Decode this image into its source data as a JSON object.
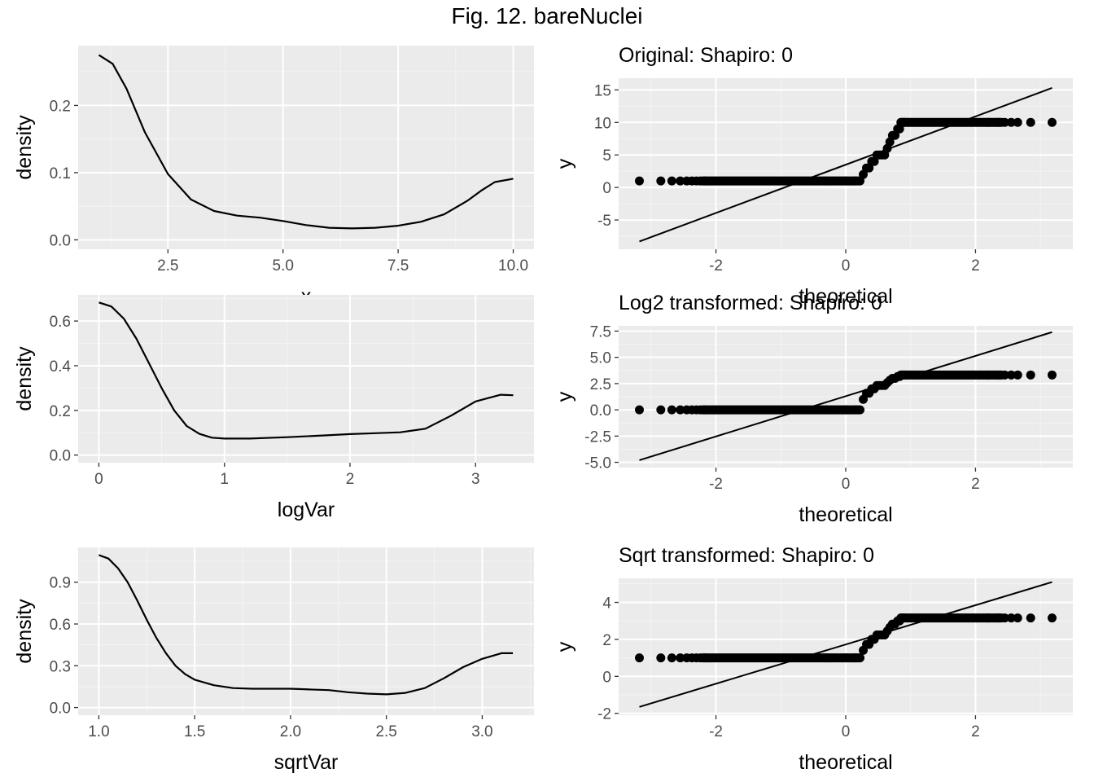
{
  "figure": {
    "title": "Fig. 12. bareNuclei"
  },
  "colors": {
    "panel_bg": "#ebebeb",
    "grid_major": "#ffffff",
    "grid_minor": "#f4f4f4",
    "line": "#000000",
    "tick_text": "#4d4d4d",
    "axis_title": "#000000"
  },
  "chart_data": [
    {
      "type": "line",
      "title": "",
      "xlabel": "x",
      "ylabel": "density",
      "xlim": [
        0.55,
        10.45
      ],
      "ylim": [
        -0.014,
        0.289
      ],
      "xticks": [
        2.5,
        5.0,
        7.5,
        10.0
      ],
      "xtick_labels": [
        "2.5",
        "5.0",
        "7.5",
        "10.0"
      ],
      "yticks": [
        0.0,
        0.1,
        0.2
      ],
      "ytick_labels": [
        "0.0",
        "0.1",
        "0.2"
      ],
      "grid": true,
      "x": [
        1.0,
        1.3,
        1.6,
        2.0,
        2.5,
        3.0,
        3.5,
        4.0,
        4.5,
        5.0,
        5.5,
        6.0,
        6.5,
        7.0,
        7.5,
        8.0,
        8.5,
        9.0,
        9.3,
        9.6,
        10.0
      ],
      "y": [
        0.275,
        0.262,
        0.225,
        0.16,
        0.098,
        0.06,
        0.043,
        0.036,
        0.033,
        0.028,
        0.022,
        0.018,
        0.017,
        0.018,
        0.021,
        0.027,
        0.038,
        0.058,
        0.073,
        0.086,
        0.091
      ]
    },
    {
      "type": "scatter",
      "title": "Original: Shapiro: 0",
      "xlabel": "theoretical",
      "ylabel": "y",
      "xlim": [
        -3.5,
        3.5
      ],
      "ylim": [
        -9.5,
        16.8
      ],
      "xticks": [
        -2,
        0,
        2
      ],
      "xtick_labels": [
        "-2",
        "0",
        "2"
      ],
      "yticks": [
        -5,
        0,
        5,
        10,
        15
      ],
      "ytick_labels": [
        "-5",
        "0",
        "5",
        "10",
        "15"
      ],
      "grid": true,
      "points": {
        "x": [
          -3.18,
          -2.85,
          -2.68,
          -2.55,
          -2.45,
          -2.37,
          -2.3,
          -2.24,
          -2.18,
          -0.3,
          0.0,
          0.15,
          0.22,
          0.27,
          0.32,
          0.36,
          0.4,
          0.44,
          0.48,
          0.52,
          0.56,
          0.6,
          0.64,
          0.68,
          0.72,
          0.76,
          0.8,
          0.83,
          0.86,
          0.9,
          2.2,
          2.35,
          2.45,
          2.55,
          2.65,
          2.85,
          3.18
        ],
        "y": [
          1,
          1,
          1,
          1,
          1,
          1,
          1,
          1,
          1,
          1,
          1,
          1,
          1,
          2,
          3,
          3,
          4,
          4,
          5,
          5,
          5,
          5,
          6,
          7,
          8,
          8,
          9,
          9,
          10,
          10,
          10,
          10,
          10,
          10,
          10,
          10,
          10
        ]
      },
      "dense_runs": [
        {
          "x_from": -2.2,
          "x_to": 0.2,
          "y": 1
        },
        {
          "x_from": 0.85,
          "x_to": 2.4,
          "y": 10
        }
      ],
      "reference_line": {
        "x": [
          -3.18,
          3.18
        ],
        "y": [
          -8.3,
          15.3
        ]
      }
    },
    {
      "type": "line",
      "title": "",
      "xlabel": "logVar",
      "ylabel": "density",
      "xlim": [
        -0.165,
        3.465
      ],
      "ylim": [
        -0.034,
        0.717
      ],
      "xticks": [
        0,
        1,
        2,
        3
      ],
      "xtick_labels": [
        "0",
        "1",
        "2",
        "3"
      ],
      "yticks": [
        0.0,
        0.2,
        0.4,
        0.6
      ],
      "ytick_labels": [
        "0.0",
        "0.2",
        "0.4",
        "0.6"
      ],
      "grid": true,
      "x": [
        0.0,
        0.1,
        0.2,
        0.3,
        0.4,
        0.5,
        0.6,
        0.7,
        0.8,
        0.9,
        1.0,
        1.2,
        1.5,
        1.8,
        2.0,
        2.2,
        2.4,
        2.6,
        2.8,
        3.0,
        3.2,
        3.3
      ],
      "y": [
        0.683,
        0.665,
        0.61,
        0.52,
        0.41,
        0.3,
        0.2,
        0.13,
        0.095,
        0.078,
        0.074,
        0.074,
        0.08,
        0.088,
        0.094,
        0.098,
        0.102,
        0.118,
        0.175,
        0.24,
        0.27,
        0.268
      ]
    },
    {
      "type": "scatter",
      "title": "Log2 transformed: Shapiro: 0",
      "xlabel": "theoretical",
      "ylabel": "y",
      "xlim": [
        -3.5,
        3.5
      ],
      "ylim": [
        -5.5,
        8.0
      ],
      "xticks": [
        -2,
        0,
        2
      ],
      "xtick_labels": [
        "-2",
        "0",
        "2"
      ],
      "yticks": [
        -5.0,
        -2.5,
        0.0,
        2.5,
        5.0,
        7.5
      ],
      "ytick_labels": [
        "-5.0",
        "-2.5",
        "0.0",
        "2.5",
        "5.0",
        "7.5"
      ],
      "grid": true,
      "points": {
        "x": [
          -3.18,
          -2.85,
          -2.68,
          -2.55,
          -2.45,
          -2.37,
          -2.3,
          -2.24,
          -2.18,
          -0.3,
          0.0,
          0.15,
          0.22,
          0.27,
          0.32,
          0.36,
          0.4,
          0.44,
          0.48,
          0.52,
          0.56,
          0.6,
          0.64,
          0.68,
          0.72,
          0.76,
          0.8,
          0.83,
          0.86,
          0.9,
          2.2,
          2.35,
          2.45,
          2.55,
          2.65,
          2.85,
          3.18
        ],
        "y": [
          0,
          0,
          0,
          0,
          0,
          0,
          0,
          0,
          0,
          0,
          0,
          0,
          0,
          1,
          1.58,
          1.58,
          2,
          2,
          2.32,
          2.32,
          2.32,
          2.32,
          2.58,
          2.81,
          3,
          3,
          3.17,
          3.17,
          3.32,
          3.32,
          3.32,
          3.32,
          3.32,
          3.32,
          3.32,
          3.32,
          3.32
        ]
      },
      "dense_runs": [
        {
          "x_from": -2.2,
          "x_to": 0.2,
          "y": 0
        },
        {
          "x_from": 0.85,
          "x_to": 2.4,
          "y": 3.32
        }
      ],
      "reference_line": {
        "x": [
          -3.18,
          3.18
        ],
        "y": [
          -4.8,
          7.4
        ]
      }
    },
    {
      "type": "line",
      "title": "",
      "xlabel": "sqrtVar",
      "ylabel": "density",
      "xlim": [
        0.892,
        3.27
      ],
      "ylim": [
        -0.055,
        1.15
      ],
      "xticks": [
        1.0,
        1.5,
        2.0,
        2.5,
        3.0
      ],
      "xtick_labels": [
        "1.0",
        "1.5",
        "2.0",
        "2.5",
        "3.0"
      ],
      "yticks": [
        0.0,
        0.3,
        0.6,
        0.9
      ],
      "ytick_labels": [
        "0.0",
        "0.3",
        "0.6",
        "0.9"
      ],
      "grid": true,
      "x": [
        1.0,
        1.05,
        1.1,
        1.15,
        1.2,
        1.25,
        1.3,
        1.35,
        1.4,
        1.45,
        1.5,
        1.6,
        1.7,
        1.8,
        1.9,
        2.0,
        2.1,
        2.2,
        2.3,
        2.4,
        2.5,
        2.6,
        2.7,
        2.8,
        2.9,
        3.0,
        3.1,
        3.16
      ],
      "y": [
        1.095,
        1.07,
        1.0,
        0.9,
        0.77,
        0.63,
        0.5,
        0.39,
        0.3,
        0.24,
        0.2,
        0.16,
        0.14,
        0.135,
        0.135,
        0.135,
        0.13,
        0.125,
        0.11,
        0.1,
        0.095,
        0.105,
        0.14,
        0.21,
        0.29,
        0.35,
        0.39,
        0.39
      ]
    },
    {
      "type": "scatter",
      "title": "Sqrt transformed: Shapiro: 0",
      "xlabel": "theoretical",
      "ylabel": "y",
      "xlim": [
        -3.5,
        3.5
      ],
      "ylim": [
        -2.1,
        5.3
      ],
      "xticks": [
        -2,
        0,
        2
      ],
      "xtick_labels": [
        "-2",
        "0",
        "2"
      ],
      "yticks": [
        -2,
        0,
        2,
        4
      ],
      "ytick_labels": [
        "-2",
        "0",
        "2",
        "4"
      ],
      "grid": true,
      "points": {
        "x": [
          -3.18,
          -2.85,
          -2.68,
          -2.55,
          -2.45,
          -2.37,
          -2.3,
          -2.24,
          -2.18,
          -0.3,
          0.0,
          0.15,
          0.22,
          0.27,
          0.32,
          0.36,
          0.4,
          0.44,
          0.48,
          0.52,
          0.56,
          0.6,
          0.64,
          0.68,
          0.72,
          0.76,
          0.8,
          0.83,
          0.86,
          0.9,
          2.2,
          2.35,
          2.45,
          2.55,
          2.65,
          2.85,
          3.18
        ],
        "y": [
          1,
          1,
          1,
          1,
          1,
          1,
          1,
          1,
          1,
          1,
          1,
          1,
          1,
          1.41,
          1.73,
          1.73,
          2,
          2,
          2.24,
          2.24,
          2.24,
          2.24,
          2.45,
          2.65,
          2.83,
          2.83,
          3,
          3,
          3.16,
          3.16,
          3.16,
          3.16,
          3.16,
          3.16,
          3.16,
          3.16,
          3.16
        ]
      },
      "dense_runs": [
        {
          "x_from": -2.2,
          "x_to": 0.2,
          "y": 1
        },
        {
          "x_from": 0.85,
          "x_to": 2.4,
          "y": 3.16
        }
      ],
      "reference_line": {
        "x": [
          -3.18,
          3.18
        ],
        "y": [
          -1.65,
          5.1
        ]
      }
    }
  ]
}
